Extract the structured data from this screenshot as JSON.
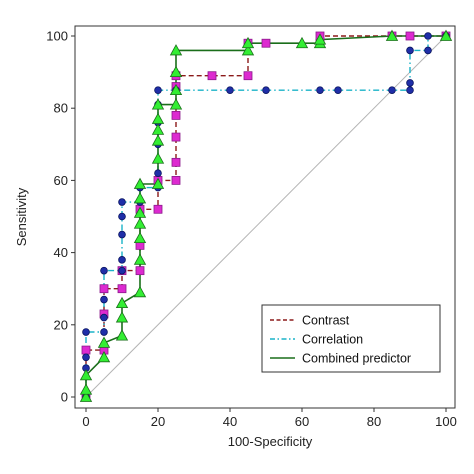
{
  "chart_data": {
    "type": "line",
    "subtype": "roc-step",
    "xlabel": "100-Specificity",
    "ylabel": "Sensitivity",
    "xlim": [
      0,
      100
    ],
    "ylim": [
      0,
      100
    ],
    "xticks": [
      0,
      20,
      40,
      60,
      80,
      100
    ],
    "yticks": [
      0,
      20,
      40,
      60,
      80,
      100
    ],
    "grid": false,
    "legend_position": "bottom-right",
    "reference_line": {
      "from": [
        0,
        0
      ],
      "to": [
        100,
        100
      ],
      "color": "#b4b4b4"
    },
    "series": [
      {
        "name": "Contrast",
        "color": "#8b1a1a",
        "line_style": "dashed",
        "marker": "square",
        "marker_color": "#dd2ad0",
        "points": [
          [
            0,
            0
          ],
          [
            0,
            13
          ],
          [
            5,
            13
          ],
          [
            5,
            23
          ],
          [
            5,
            30
          ],
          [
            10,
            30
          ],
          [
            10,
            35
          ],
          [
            15,
            35
          ],
          [
            15,
            42
          ],
          [
            15,
            52
          ],
          [
            20,
            52
          ],
          [
            20,
            60
          ],
          [
            25,
            60
          ],
          [
            25,
            65
          ],
          [
            25,
            72
          ],
          [
            25,
            78
          ],
          [
            25,
            86
          ],
          [
            25,
            89
          ],
          [
            35,
            89
          ],
          [
            45,
            89
          ],
          [
            45,
            98
          ],
          [
            50,
            98
          ],
          [
            65,
            98
          ],
          [
            65,
            100
          ],
          [
            85,
            100
          ],
          [
            90,
            100
          ],
          [
            100,
            100
          ]
        ]
      },
      {
        "name": "Correlation",
        "color": "#1ab3c8",
        "line_style": "dash-dot",
        "marker": "circle",
        "marker_color": "#1f2ea8",
        "points": [
          [
            0,
            0
          ],
          [
            0,
            8
          ],
          [
            0,
            11
          ],
          [
            0,
            18
          ],
          [
            5,
            18
          ],
          [
            5,
            22
          ],
          [
            5,
            27
          ],
          [
            5,
            35
          ],
          [
            10,
            35
          ],
          [
            10,
            38
          ],
          [
            10,
            45
          ],
          [
            10,
            50
          ],
          [
            10,
            54
          ],
          [
            15,
            54
          ],
          [
            15,
            58
          ],
          [
            20,
            58
          ],
          [
            20,
            62
          ],
          [
            20,
            70
          ],
          [
            20,
            76
          ],
          [
            20,
            81
          ],
          [
            20,
            85
          ],
          [
            25,
            85
          ],
          [
            40,
            85
          ],
          [
            50,
            85
          ],
          [
            65,
            85
          ],
          [
            70,
            85
          ],
          [
            85,
            85
          ],
          [
            90,
            85
          ],
          [
            90,
            87
          ],
          [
            90,
            96
          ],
          [
            95,
            96
          ],
          [
            95,
            100
          ],
          [
            100,
            100
          ]
        ]
      },
      {
        "name": "Combined predictor",
        "color": "#1a6e1a",
        "line_style": "solid",
        "marker": "triangle",
        "marker_color": "#33ee33",
        "points": [
          [
            0,
            0
          ],
          [
            0,
            2
          ],
          [
            0,
            6
          ],
          [
            5,
            11
          ],
          [
            5,
            15
          ],
          [
            10,
            17
          ],
          [
            10,
            22
          ],
          [
            10,
            26
          ],
          [
            15,
            29
          ],
          [
            15,
            38
          ],
          [
            15,
            44
          ],
          [
            15,
            48
          ],
          [
            15,
            51
          ],
          [
            15,
            55
          ],
          [
            15,
            59
          ],
          [
            20,
            59
          ],
          [
            20,
            66
          ],
          [
            20,
            71
          ],
          [
            20,
            74
          ],
          [
            20,
            77
          ],
          [
            20,
            81
          ],
          [
            25,
            81
          ],
          [
            25,
            85
          ],
          [
            25,
            90
          ],
          [
            25,
            96
          ],
          [
            45,
            96
          ],
          [
            45,
            98
          ],
          [
            60,
            98
          ],
          [
            65,
            98
          ],
          [
            65,
            99
          ],
          [
            85,
            100
          ],
          [
            100,
            100
          ]
        ]
      }
    ]
  }
}
